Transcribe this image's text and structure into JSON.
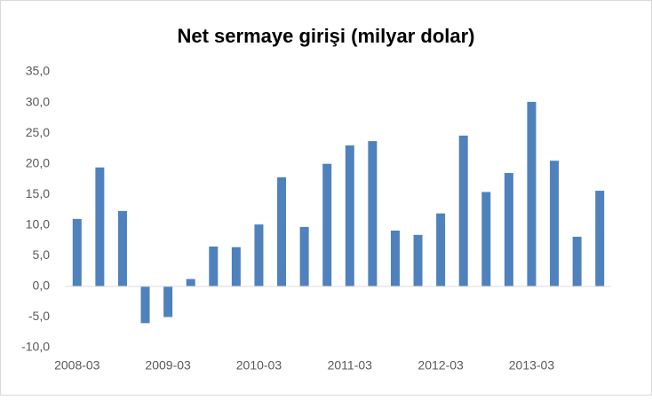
{
  "chart_data": {
    "type": "bar",
    "title": "Net sermaye girişi (milyar dolar)",
    "categories": [
      "2008-03",
      null,
      null,
      null,
      "2009-03",
      null,
      null,
      null,
      "2010-03",
      null,
      null,
      null,
      "2011-03",
      null,
      null,
      null,
      "2012-03",
      null,
      null,
      null,
      "2013-03",
      null,
      null,
      null
    ],
    "values": [
      11.0,
      19.4,
      12.3,
      -6.0,
      -5.0,
      1.2,
      6.5,
      6.4,
      10.1,
      17.8,
      9.7,
      20.0,
      23.0,
      23.7,
      9.1,
      8.4,
      11.9,
      24.6,
      15.4,
      18.5,
      30.1,
      20.5,
      8.1,
      15.6
    ],
    "color": "#4f81bd",
    "ylim": [
      -10,
      35
    ],
    "yticks": [
      {
        "value": -10,
        "label": "-10,0"
      },
      {
        "value": -5,
        "label": "-5,0"
      },
      {
        "value": 0,
        "label": "0,0"
      },
      {
        "value": 5,
        "label": "5,0"
      },
      {
        "value": 10,
        "label": "10,0"
      },
      {
        "value": 15,
        "label": "15,0"
      },
      {
        "value": 20,
        "label": "20,0"
      },
      {
        "value": 25,
        "label": "25,0"
      },
      {
        "value": 30,
        "label": "30,0"
      },
      {
        "value": 35,
        "label": "35,0"
      }
    ],
    "grid": false
  }
}
